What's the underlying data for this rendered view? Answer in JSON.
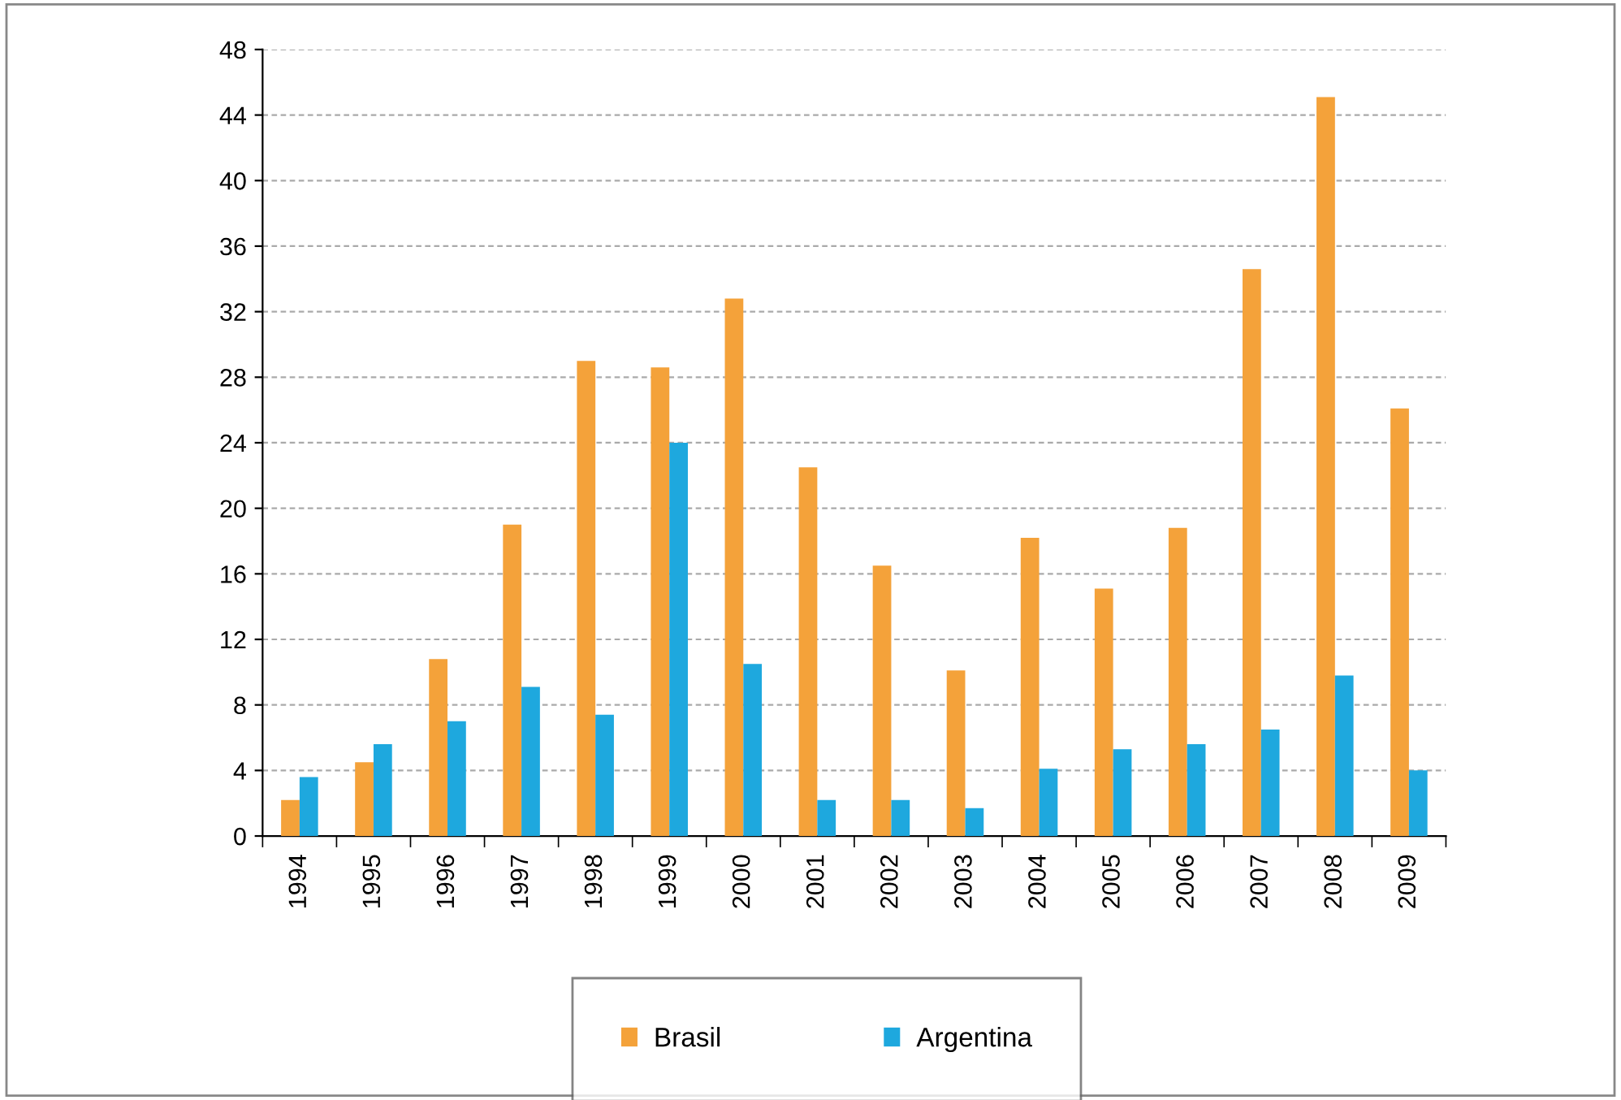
{
  "chart_data": {
    "type": "bar",
    "categories": [
      "1994",
      "1995",
      "1996",
      "1997",
      "1998",
      "1999",
      "2000",
      "2001",
      "2002",
      "2003",
      "2004",
      "2005",
      "2006",
      "2007",
      "2008",
      "2009"
    ],
    "series": [
      {
        "name": "Brasil",
        "color": "#f4a23a",
        "values": [
          2.2,
          4.5,
          10.8,
          19.0,
          29.0,
          28.6,
          32.8,
          22.5,
          16.5,
          10.1,
          18.2,
          15.1,
          18.8,
          34.6,
          45.1,
          26.1
        ]
      },
      {
        "name": "Argentina",
        "color": "#1ea8de",
        "values": [
          3.6,
          5.6,
          7.0,
          9.1,
          7.4,
          24.0,
          10.5,
          2.2,
          2.2,
          1.7,
          4.1,
          5.3,
          5.6,
          6.5,
          9.8,
          4.0
        ]
      }
    ],
    "ylim": [
      0,
      48
    ],
    "yticks": [
      0,
      4,
      8,
      12,
      16,
      20,
      24,
      28,
      32,
      36,
      40,
      44,
      48
    ],
    "grid": "y",
    "legend": "bottom"
  }
}
